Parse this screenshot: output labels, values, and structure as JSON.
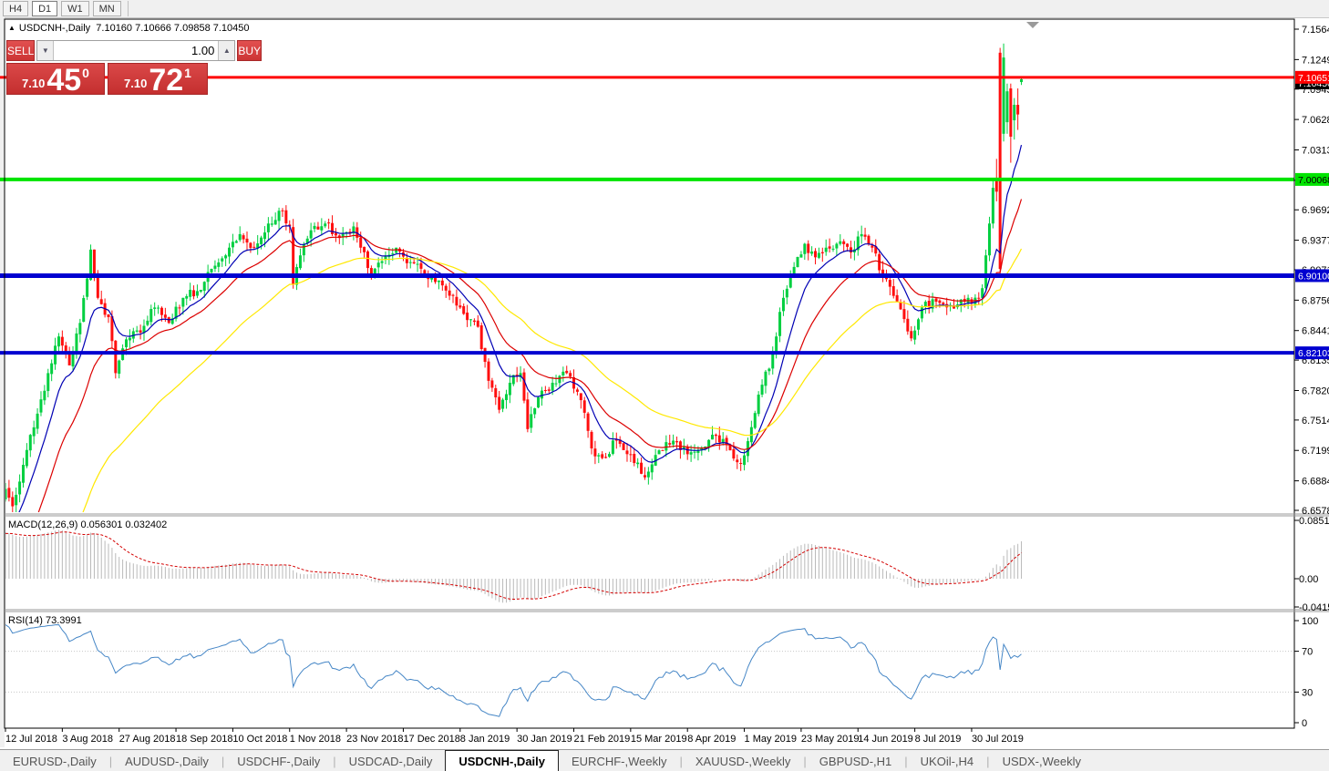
{
  "toolbar": {
    "timeframes": [
      "H4",
      "D1",
      "W1",
      "MN"
    ],
    "active": "D1"
  },
  "chart_title": {
    "collapse_icon": "▲",
    "symbol": "USDCNH-,Daily",
    "ohlc": "7.10160 7.10666 7.09858 7.10450"
  },
  "one_click": {
    "sell_label": "SELL",
    "buy_label": "BUY",
    "volume": "1.00",
    "sell_price_small": "7.10",
    "sell_price_big": "45",
    "sell_price_sup": "0",
    "buy_price_small": "7.10",
    "buy_price_big": "72",
    "buy_price_sup": "1"
  },
  "tabs": {
    "items": [
      {
        "label": "EURUSD-,Daily",
        "active": false
      },
      {
        "label": "AUDUSD-,Daily",
        "active": false
      },
      {
        "label": "USDCHF-,Daily",
        "active": false
      },
      {
        "label": "USDCAD-,Daily",
        "active": false
      },
      {
        "label": "USDCNH-,Daily",
        "active": true
      },
      {
        "label": "EURCHF-,Weekly",
        "active": false
      },
      {
        "label": "XAUUSD-,Weekly",
        "active": false
      },
      {
        "label": "GBPUSD-,H1",
        "active": false
      },
      {
        "label": "UKOil-,H4",
        "active": false
      },
      {
        "label": "USDX-,Weekly",
        "active": false
      }
    ]
  },
  "chart_data": [
    {
      "type": "candlestick",
      "title": "USDCNH-,Daily",
      "last_bar_ohlc": {
        "open": 7.1016,
        "high": 7.10666,
        "low": 7.09858,
        "close": 7.1045
      },
      "colors": {
        "up": "#00cf40",
        "down": "#ff0e0e"
      },
      "price_axis": {
        "min": 6.6578,
        "max": 7.1564,
        "ticks": [
          "7.15640",
          "7.12490",
          "7.09430",
          "7.06280",
          "7.03130",
          "6.99980",
          "6.96920",
          "6.93770",
          "6.90710",
          "6.87560",
          "6.84410",
          "6.81350",
          "6.78200",
          "6.75140",
          "6.71990",
          "6.68840",
          "6.65780"
        ]
      },
      "dates": [
        "12 Jul 2018",
        "3 Aug 2018",
        "27 Aug 2018",
        "18 Sep 2018",
        "10 Oct 2018",
        "1 Nov 2018",
        "23 Nov 2018",
        "17 Dec 2018",
        "8 Jan 2019",
        "30 Jan 2019",
        "21 Feb 2019",
        "15 Mar 2019",
        "8 Apr 2019",
        "1 May 2019",
        "23 May 2019",
        "14 Jun 2019",
        "8 Jul 2019",
        "30 Jul 2019"
      ],
      "hlines": [
        {
          "price": 7.10651,
          "label": "7.10651",
          "color": "#ff0000",
          "text": "#ffffff",
          "width": 3
        },
        {
          "price": 7.00068,
          "label": "7.00068",
          "color": "#00e400",
          "text": "#000000",
          "width": 4
        },
        {
          "price": 6.901,
          "label": "6.90100",
          "color": "#0000d0",
          "text": "#ffffff",
          "width": 5
        },
        {
          "price": 6.82103,
          "label": "6.82103",
          "color": "#0000d0",
          "text": "#ffffff",
          "width": 4
        }
      ],
      "bid_label": {
        "price": 7.1045,
        "label": "7.10450",
        "color": "#000000",
        "text": "#ffffff"
      },
      "moving_averages": [
        {
          "period": 10,
          "color": "#0000b4"
        },
        {
          "period": 22,
          "color": "#dc0000"
        },
        {
          "period": 50,
          "color": "#ffe800"
        }
      ],
      "pre_trend": {
        "days": 45,
        "start": 6.22
      },
      "noise_seed": 97531,
      "close_anchors": [
        [
          0,
          6.68
        ],
        [
          2,
          6.662
        ],
        [
          5,
          6.705
        ],
        [
          9,
          6.758
        ],
        [
          12,
          6.8
        ],
        [
          15,
          6.838
        ],
        [
          18,
          6.808
        ],
        [
          21,
          6.852
        ],
        [
          24,
          6.928
        ],
        [
          26,
          6.878
        ],
        [
          29,
          6.858
        ],
        [
          31,
          6.8
        ],
        [
          34,
          6.835
        ],
        [
          38,
          6.842
        ],
        [
          42,
          6.868
        ],
        [
          46,
          6.852
        ],
        [
          50,
          6.878
        ],
        [
          54,
          6.885
        ],
        [
          58,
          6.908
        ],
        [
          62,
          6.922
        ],
        [
          66,
          6.944
        ],
        [
          70,
          6.93
        ],
        [
          74,
          6.955
        ],
        [
          78,
          6.968
        ],
        [
          80,
          6.952
        ],
        [
          81,
          6.892
        ],
        [
          83,
          6.922
        ],
        [
          86,
          6.948
        ],
        [
          90,
          6.955
        ],
        [
          94,
          6.94
        ],
        [
          98,
          6.952
        ],
        [
          100,
          6.93
        ],
        [
          103,
          6.902
        ],
        [
          106,
          6.916
        ],
        [
          110,
          6.93
        ],
        [
          114,
          6.915
        ],
        [
          118,
          6.902
        ],
        [
          122,
          6.896
        ],
        [
          126,
          6.88
        ],
        [
          128,
          6.868
        ],
        [
          130,
          6.855
        ],
        [
          133,
          6.848
        ],
        [
          136,
          6.792
        ],
        [
          139,
          6.762
        ],
        [
          142,
          6.79
        ],
        [
          145,
          6.8
        ],
        [
          147,
          6.742
        ],
        [
          150,
          6.775
        ],
        [
          154,
          6.79
        ],
        [
          158,
          6.8
        ],
        [
          162,
          6.772
        ],
        [
          165,
          6.722
        ],
        [
          168,
          6.712
        ],
        [
          172,
          6.73
        ],
        [
          176,
          6.716
        ],
        [
          180,
          6.692
        ],
        [
          184,
          6.72
        ],
        [
          188,
          6.73
        ],
        [
          192,
          6.716
        ],
        [
          196,
          6.722
        ],
        [
          200,
          6.735
        ],
        [
          204,
          6.72
        ],
        [
          207,
          6.706
        ],
        [
          210,
          6.744
        ],
        [
          213,
          6.788
        ],
        [
          216,
          6.82
        ],
        [
          219,
          6.878
        ],
        [
          222,
          6.91
        ],
        [
          225,
          6.934
        ],
        [
          228,
          6.92
        ],
        [
          231,
          6.93
        ],
        [
          234,
          6.934
        ],
        [
          238,
          6.925
        ],
        [
          241,
          6.944
        ],
        [
          244,
          6.93
        ],
        [
          247,
          6.9
        ],
        [
          250,
          6.88
        ],
        [
          253,
          6.856
        ],
        [
          255,
          6.836
        ],
        [
          258,
          6.868
        ],
        [
          262,
          6.874
        ],
        [
          266,
          6.87
        ],
        [
          270,
          6.874
        ],
        [
          274,
          6.878
        ]
      ],
      "last_candles": [
        [
          275,
          6.878,
          6.892,
          6.87,
          6.888
        ],
        [
          276,
          6.888,
          6.928,
          6.884,
          6.922
        ],
        [
          277,
          6.922,
          6.962,
          6.916,
          6.955
        ],
        [
          278,
          6.955,
          7.002,
          6.95,
          6.992
        ],
        [
          279,
          7.0,
          7.022,
          6.978,
          6.988
        ],
        [
          280,
          7.132,
          7.137,
          6.902,
          6.908
        ],
        [
          281,
          7.048,
          7.1415,
          7.04,
          7.127
        ],
        [
          282,
          7.06,
          7.1,
          7.048,
          7.092
        ],
        [
          283,
          7.095,
          7.1,
          7.018,
          7.045
        ],
        [
          284,
          7.062,
          7.085,
          7.042,
          7.078
        ],
        [
          285,
          7.078,
          7.095,
          7.052,
          7.068
        ],
        [
          286,
          7.1016,
          7.10666,
          7.09858,
          7.1045
        ]
      ]
    },
    {
      "type": "macd",
      "label": "MACD(12,26,9) 0.056301 0.032402",
      "params": [
        12,
        26,
        9
      ],
      "current_values": [
        0.056301,
        0.032402
      ],
      "axis_ticks": [
        "0.085164",
        "0.00",
        "-0.04159"
      ],
      "histogram_color": "#b9b9b9",
      "signal_color": "#d40000"
    },
    {
      "type": "rsi",
      "label": "RSI(14) 73.3991",
      "period": 14,
      "current_value": 73.3991,
      "levels": [
        70,
        30
      ],
      "axis_ticks": [
        "100",
        "70",
        "30",
        "0"
      ],
      "line_color": "#4586c6"
    }
  ]
}
